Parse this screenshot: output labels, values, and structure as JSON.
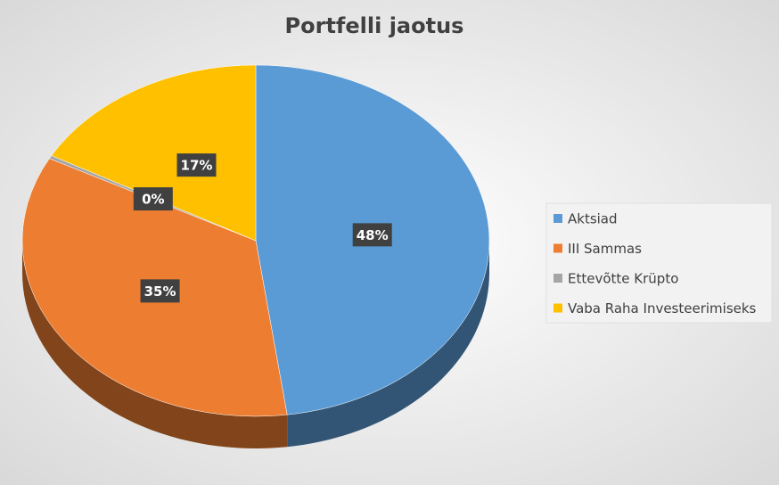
{
  "chart_data": {
    "type": "pie",
    "title": "Portfelli jaotus",
    "categories": [
      "Aktsiad",
      "III Sammas",
      "Ettevõtte Krüpto",
      "Vaba Raha Investeerimiseks"
    ],
    "values": [
      48,
      35,
      0.3,
      17
    ],
    "value_labels": [
      "48%",
      "35%",
      "0%",
      "17%"
    ],
    "colors": [
      "#5b9bd5",
      "#ed7d31",
      "#a5a5a5",
      "#ffc000"
    ],
    "legend": "right"
  }
}
